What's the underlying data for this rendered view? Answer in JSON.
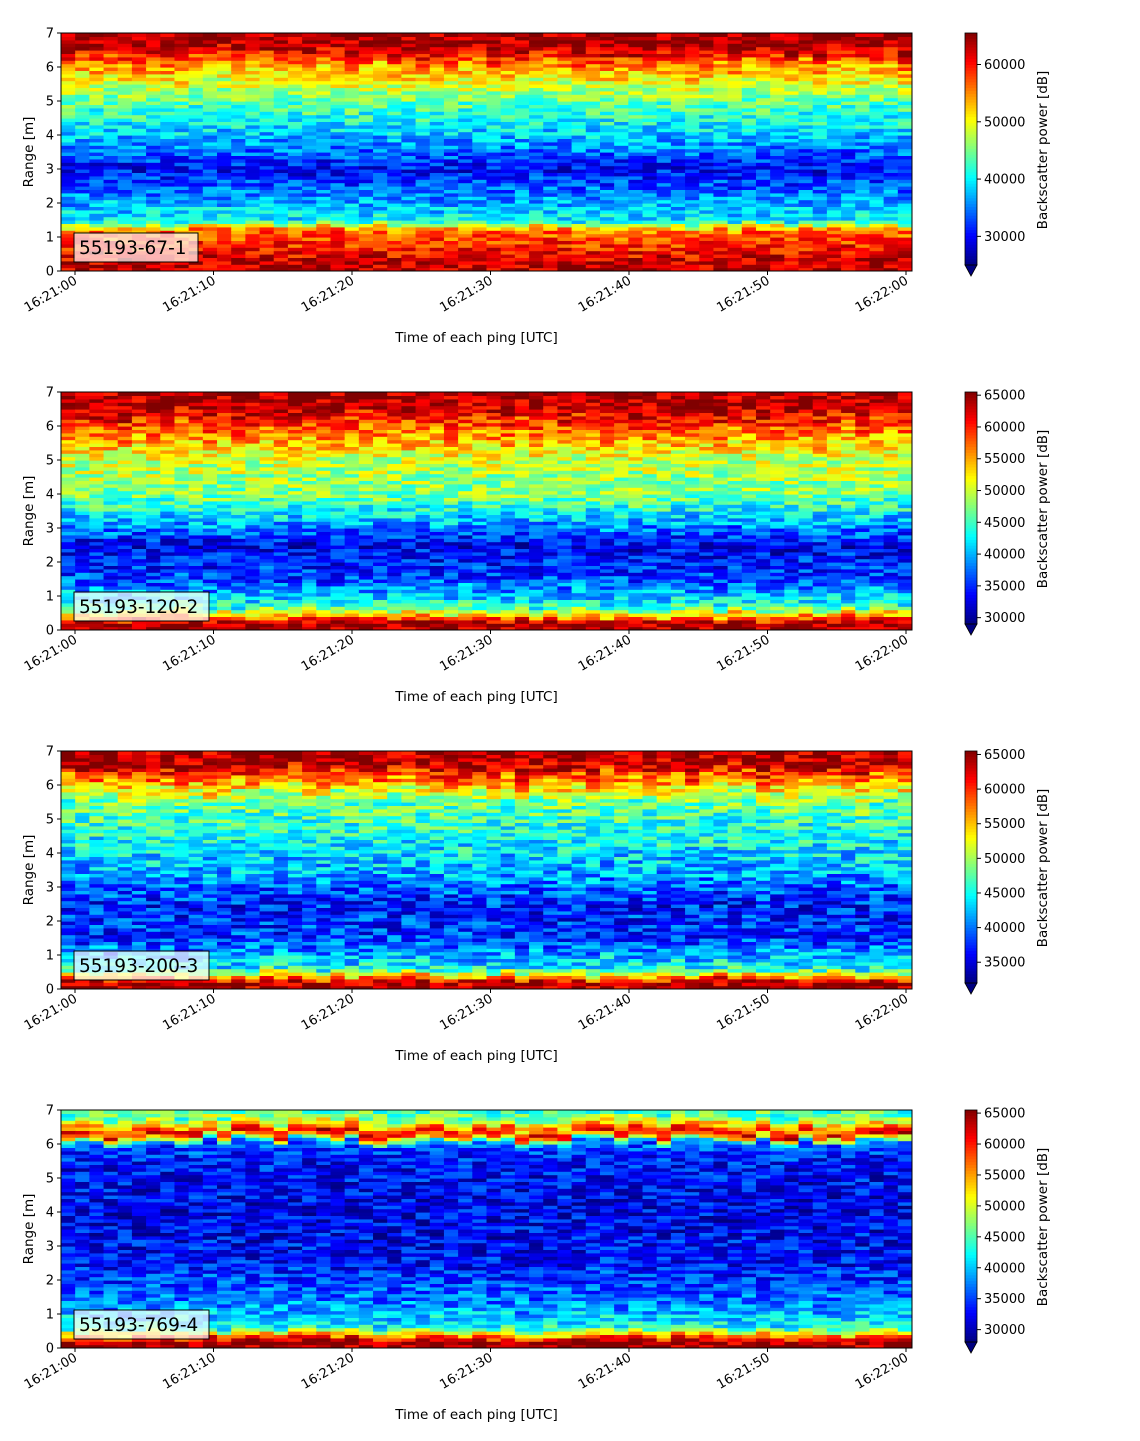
{
  "chart_data": [
    {
      "type": "heatmap",
      "annotation": "55193-67-1",
      "xlabel": "Time of each ping [UTC]",
      "ylabel": "Range [m]",
      "xticks": [
        "16:21:00",
        "16:21:10",
        "16:21:20",
        "16:21:30",
        "16:21:40",
        "16:21:50",
        "16:22:00"
      ],
      "yticks": [
        "0",
        "1",
        "2",
        "3",
        "4",
        "5",
        "6",
        "7"
      ],
      "ylim": [
        0,
        7
      ],
      "colorbar": {
        "label": "Backscatter power [dB]",
        "range": [
          25000,
          65500
        ],
        "ticks": [
          "30000",
          "40000",
          "50000",
          "60000"
        ],
        "tick_values": [
          30000,
          40000,
          50000,
          60000
        ],
        "extend": "min",
        "colormap": "jet"
      },
      "profile": [
        {
          "range_m": 0.2,
          "value": 63000
        },
        {
          "range_m": 1.2,
          "value": 56000
        },
        {
          "range_m": 1.5,
          "value": 40000
        },
        {
          "range_m": 2.0,
          "value": 37000
        },
        {
          "range_m": 3.0,
          "value": 30000
        },
        {
          "range_m": 4.0,
          "value": 38000
        },
        {
          "range_m": 5.0,
          "value": 44000
        },
        {
          "range_m": 6.0,
          "value": 54000
        },
        {
          "range_m": 6.6,
          "value": 64000
        }
      ]
    },
    {
      "type": "heatmap",
      "annotation": "55193-120-2",
      "xlabel": "Time of each ping [UTC]",
      "ylabel": "Range [m]",
      "xticks": [
        "16:21:00",
        "16:21:10",
        "16:21:20",
        "16:21:30",
        "16:21:40",
        "16:21:50",
        "16:22:00"
      ],
      "yticks": [
        "0",
        "1",
        "2",
        "3",
        "4",
        "5",
        "6",
        "7"
      ],
      "ylim": [
        0,
        7
      ],
      "colorbar": {
        "label": "Backscatter power [dB]",
        "range": [
          29000,
          65500
        ],
        "ticks": [
          "30000",
          "35000",
          "40000",
          "45000",
          "50000",
          "55000",
          "60000",
          "65000"
        ],
        "tick_values": [
          30000,
          35000,
          40000,
          45000,
          50000,
          55000,
          60000,
          65000
        ],
        "extend": "min",
        "colormap": "jet"
      },
      "profile": [
        {
          "range_m": 0.2,
          "value": 64000
        },
        {
          "range_m": 0.7,
          "value": 44000
        },
        {
          "range_m": 1.5,
          "value": 36000
        },
        {
          "range_m": 2.5,
          "value": 33000
        },
        {
          "range_m": 3.2,
          "value": 40000
        },
        {
          "range_m": 4.0,
          "value": 47000
        },
        {
          "range_m": 5.0,
          "value": 50000
        },
        {
          "range_m": 6.0,
          "value": 58000
        },
        {
          "range_m": 6.6,
          "value": 64000
        }
      ]
    },
    {
      "type": "heatmap",
      "annotation": "55193-200-3",
      "xlabel": "Time of each ping [UTC]",
      "ylabel": "Range [m]",
      "xticks": [
        "16:21:00",
        "16:21:10",
        "16:21:20",
        "16:21:30",
        "16:21:40",
        "16:21:50",
        "16:22:00"
      ],
      "yticks": [
        "0",
        "1",
        "2",
        "3",
        "4",
        "5",
        "6",
        "7"
      ],
      "ylim": [
        0,
        7
      ],
      "colorbar": {
        "label": "Backscatter power [dB]",
        "range": [
          32000,
          65500
        ],
        "ticks": [
          "35000",
          "40000",
          "45000",
          "50000",
          "55000",
          "60000",
          "65000"
        ],
        "tick_values": [
          35000,
          40000,
          45000,
          50000,
          55000,
          60000,
          65000
        ],
        "extend": "min",
        "colormap": "jet"
      },
      "profile": [
        {
          "range_m": 0.2,
          "value": 64000
        },
        {
          "range_m": 0.6,
          "value": 45000
        },
        {
          "range_m": 1.5,
          "value": 38000
        },
        {
          "range_m": 2.5,
          "value": 37000
        },
        {
          "range_m": 3.5,
          "value": 42000
        },
        {
          "range_m": 4.5,
          "value": 45000
        },
        {
          "range_m": 5.5,
          "value": 48000
        },
        {
          "range_m": 6.1,
          "value": 56000
        },
        {
          "range_m": 6.6,
          "value": 64000
        }
      ]
    },
    {
      "type": "heatmap",
      "annotation": "55193-769-4",
      "xlabel": "Time of each ping [UTC]",
      "ylabel": "Range [m]",
      "xticks": [
        "16:21:00",
        "16:21:10",
        "16:21:20",
        "16:21:30",
        "16:21:40",
        "16:21:50",
        "16:22:00"
      ],
      "yticks": [
        "0",
        "1",
        "2",
        "3",
        "4",
        "5",
        "6",
        "7"
      ],
      "ylim": [
        0,
        7
      ],
      "colorbar": {
        "label": "Backscatter power [dB]",
        "range": [
          28000,
          65500
        ],
        "ticks": [
          "30000",
          "35000",
          "40000",
          "45000",
          "50000",
          "55000",
          "60000",
          "65000"
        ],
        "tick_values": [
          30000,
          35000,
          40000,
          45000,
          50000,
          55000,
          60000,
          65000
        ],
        "extend": "min",
        "colormap": "jet"
      },
      "profile": [
        {
          "range_m": 0.2,
          "value": 64000
        },
        {
          "range_m": 0.6,
          "value": 43000
        },
        {
          "range_m": 1.2,
          "value": 38000
        },
        {
          "range_m": 2.5,
          "value": 33000
        },
        {
          "range_m": 4.0,
          "value": 32000
        },
        {
          "range_m": 5.5,
          "value": 33000
        },
        {
          "range_m": 6.0,
          "value": 36000
        },
        {
          "range_m": 6.3,
          "value": 62000
        },
        {
          "range_m": 6.8,
          "value": 45000
        }
      ]
    }
  ]
}
